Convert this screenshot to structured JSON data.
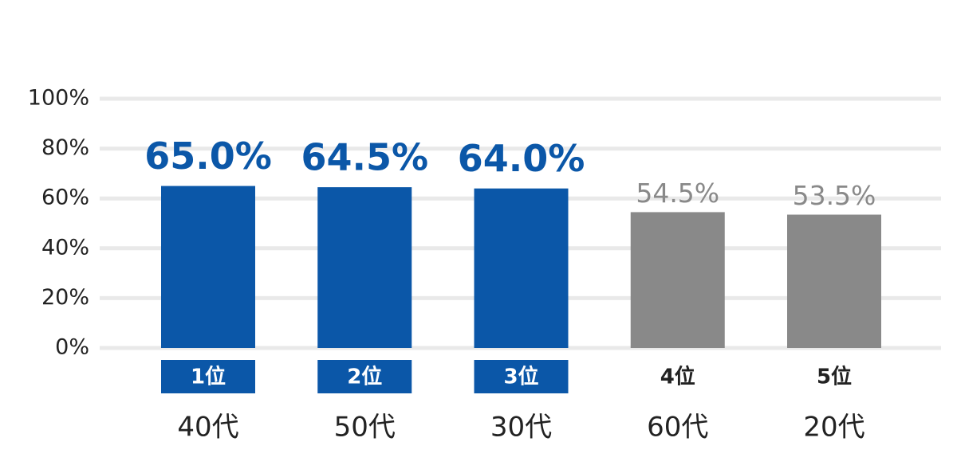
{
  "chart_data": {
    "type": "bar",
    "categories": [
      "40代",
      "50代",
      "30代",
      "60代",
      "20代"
    ],
    "ranks": [
      "1位",
      "2位",
      "3位",
      "4位",
      "5位"
    ],
    "values": [
      65.0,
      64.5,
      64.0,
      54.5,
      53.5
    ],
    "value_labels": [
      "65.0%",
      "64.5%",
      "64.0%",
      "54.5%",
      "53.5%"
    ],
    "colors": [
      "#0b57a8",
      "#0b57a8",
      "#0b57a8",
      "#898989",
      "#898989"
    ],
    "highlight_color": "#0b57a8",
    "ylim": [
      0,
      100
    ],
    "yticks": [
      {
        "value": 0,
        "label": "0%"
      },
      {
        "value": 20,
        "label": "20%"
      },
      {
        "value": 40,
        "label": "40%"
      },
      {
        "value": 60,
        "label": "60%"
      },
      {
        "value": 80,
        "label": "80%"
      },
      {
        "value": 100,
        "label": "100%"
      }
    ],
    "grid": true
  }
}
